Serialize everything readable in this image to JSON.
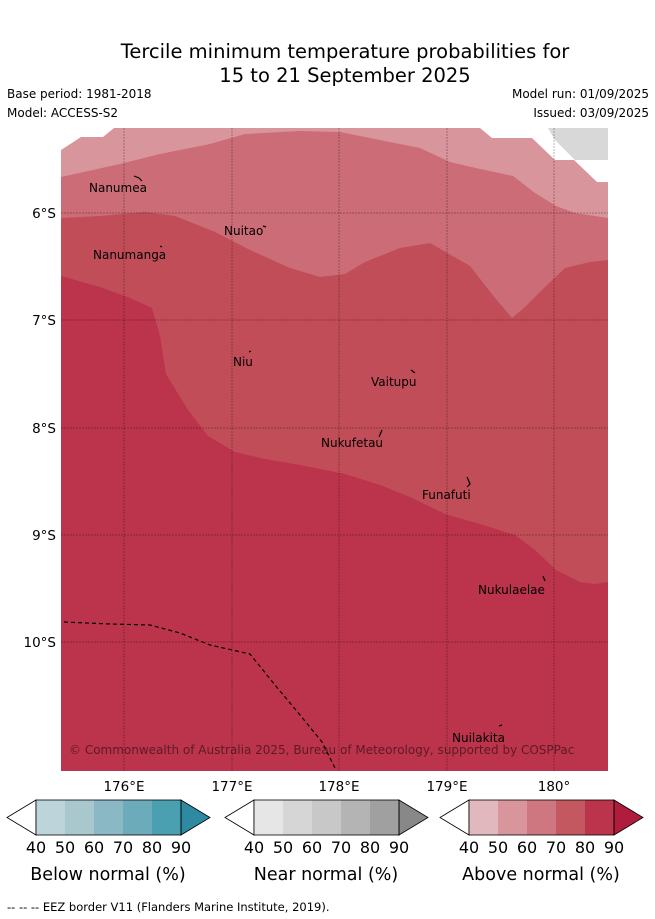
{
  "header": {
    "title_line1": "Tercile minimum temperature probabilities for",
    "title_line2": "15 to 21 September 2025",
    "base_period": "Base period: 1981-2018",
    "model": "Model: ACCESS-S2",
    "model_run": "Model run: 01/09/2025",
    "issued": "Issued: 03/09/2025"
  },
  "map": {
    "lat_ticks": [
      "6°S",
      "7°S",
      "8°S",
      "9°S",
      "10°S"
    ],
    "lon_ticks": [
      "176°E",
      "177°E",
      "178°E",
      "179°E",
      "180°"
    ],
    "islands": [
      "Nanumea",
      "Nuitao",
      "Nanumanga",
      "Niu",
      "Vaitupu",
      "Nukufetau",
      "Funafuti",
      "Nukulaelae",
      "Nuilakita"
    ],
    "copyright": "© Commonwealth of Australia 2025, Bureau of Meteorology, supported by COSPPac"
  },
  "legend": {
    "below": {
      "label": "Below normal (%)",
      "ticks": [
        "40",
        "50",
        "60",
        "70",
        "80",
        "90"
      ],
      "colors": [
        "#ffffff",
        "#bcd4da",
        "#a8c8ce",
        "#8ab9c5",
        "#6cabba",
        "#4aa0b0",
        "#2e8aa1"
      ]
    },
    "near": {
      "label": "Near normal (%)",
      "ticks": [
        "40",
        "50",
        "60",
        "70",
        "80",
        "90"
      ],
      "colors": [
        "#ffffff",
        "#e6e6e6",
        "#d6d6d6",
        "#c8c8c8",
        "#b4b4b4",
        "#a0a0a0",
        "#888888"
      ]
    },
    "above": {
      "label": "Above normal (%)",
      "ticks": [
        "40",
        "50",
        "60",
        "70",
        "80",
        "90"
      ],
      "colors": [
        "#ffffff",
        "#e1b8bd",
        "#d9959c",
        "#cf7780",
        "#c45860",
        "#bb344b",
        "#b01c3c"
      ]
    }
  },
  "footnote": "--  --  -- EEZ border V11 (Flanders Marine Institute, 2019)."
}
